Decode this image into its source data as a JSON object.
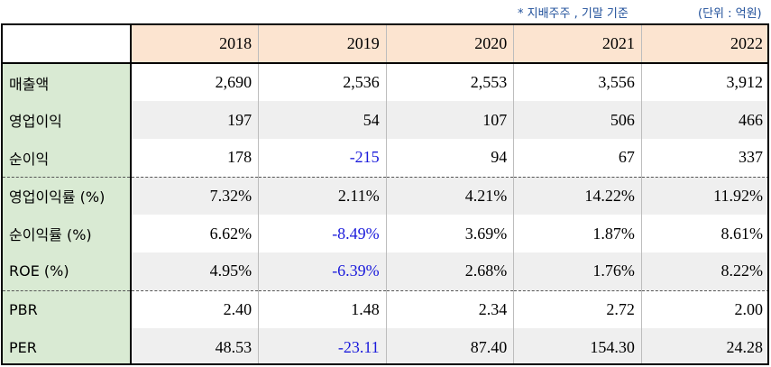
{
  "notes": {
    "basis": "* 지배주주 , 기말 기준",
    "unit": "(단위 : 억원)"
  },
  "table": {
    "corner": "",
    "years": [
      "2018",
      "2019",
      "2020",
      "2021",
      "2022"
    ],
    "rows": [
      {
        "label": "매출액",
        "values": [
          "2,690",
          "2,536",
          "2,553",
          "3,556",
          "3,912"
        ]
      },
      {
        "label": "영업이익",
        "values": [
          "197",
          "54",
          "107",
          "506",
          "466"
        ]
      },
      {
        "label": "순이익",
        "values": [
          "178",
          "-215",
          "94",
          "67",
          "337"
        ]
      },
      {
        "label": "영업이익률 (%)",
        "values": [
          "7.32%",
          "2.11%",
          "4.21%",
          "14.22%",
          "11.92%"
        ]
      },
      {
        "label": "순이익률 (%)",
        "values": [
          "6.62%",
          "-8.49%",
          "3.69%",
          "1.87%",
          "8.61%"
        ]
      },
      {
        "label": "ROE (%)",
        "values": [
          "4.95%",
          "-6.39%",
          "2.68%",
          "1.76%",
          "8.22%"
        ]
      },
      {
        "label": "PBR",
        "values": [
          "2.40",
          "1.48",
          "2.34",
          "2.72",
          "2.00"
        ]
      },
      {
        "label": "PER",
        "values": [
          "48.53",
          "-23.11",
          "87.40",
          "154.30",
          "24.28"
        ]
      }
    ]
  },
  "colors": {
    "header_bg": "#fce4d0",
    "label_bg": "#d9ead3",
    "negative_text": "#1a1adb",
    "note_text": "#1f4f9a"
  }
}
